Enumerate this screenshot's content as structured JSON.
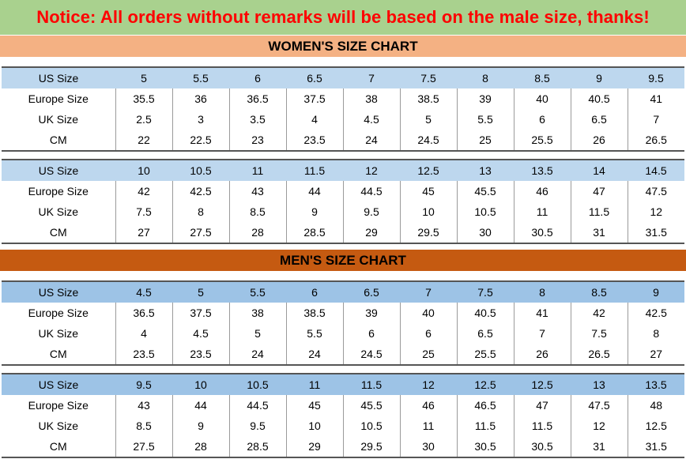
{
  "notice": "Notice: All orders without remarks will be based on the male size, thanks!",
  "women_title": "WOMEN'S SIZE CHART",
  "men_title": "MEN'S SIZE CHART",
  "row_labels": [
    "US Size",
    "Europe Size",
    "UK Size",
    "CM"
  ],
  "women_tables": [
    {
      "us": [
        "5",
        "5.5",
        "6",
        "6.5",
        "7",
        "7.5",
        "8",
        "8.5",
        "9",
        "9.5"
      ],
      "eu": [
        "35.5",
        "36",
        "36.5",
        "37.5",
        "38",
        "38.5",
        "39",
        "40",
        "40.5",
        "41"
      ],
      "uk": [
        "2.5",
        "3",
        "3.5",
        "4",
        "4.5",
        "5",
        "5.5",
        "6",
        "6.5",
        "7"
      ],
      "cm": [
        "22",
        "22.5",
        "23",
        "23.5",
        "24",
        "24.5",
        "25",
        "25.5",
        "26",
        "26.5"
      ]
    },
    {
      "us": [
        "10",
        "10.5",
        "11",
        "11.5",
        "12",
        "12.5",
        "13",
        "13.5",
        "14",
        "14.5"
      ],
      "eu": [
        "42",
        "42.5",
        "43",
        "44",
        "44.5",
        "45",
        "45.5",
        "46",
        "47",
        "47.5"
      ],
      "uk": [
        "7.5",
        "8",
        "8.5",
        "9",
        "9.5",
        "10",
        "10.5",
        "11",
        "11.5",
        "12"
      ],
      "cm": [
        "27",
        "27.5",
        "28",
        "28.5",
        "29",
        "29.5",
        "30",
        "30.5",
        "31",
        "31.5"
      ]
    }
  ],
  "men_tables": [
    {
      "us": [
        "4.5",
        "5",
        "5.5",
        "6",
        "6.5",
        "7",
        "7.5",
        "8",
        "8.5",
        "9"
      ],
      "eu": [
        "36.5",
        "37.5",
        "38",
        "38.5",
        "39",
        "40",
        "40.5",
        "41",
        "42",
        "42.5"
      ],
      "uk": [
        "4",
        "4.5",
        "5",
        "5.5",
        "6",
        "6",
        "6.5",
        "7",
        "7.5",
        "8"
      ],
      "cm": [
        "23.5",
        "23.5",
        "24",
        "24",
        "24.5",
        "25",
        "25.5",
        "26",
        "26.5",
        "27"
      ]
    },
    {
      "us": [
        "9.5",
        "10",
        "10.5",
        "11",
        "11.5",
        "12",
        "12.5",
        "12.5",
        "13",
        "13.5"
      ],
      "eu": [
        "43",
        "44",
        "44.5",
        "45",
        "45.5",
        "46",
        "46.5",
        "47",
        "47.5",
        "48"
      ],
      "uk": [
        "8.5",
        "9",
        "9.5",
        "10",
        "10.5",
        "11",
        "11.5",
        "11.5",
        "12",
        "12.5"
      ],
      "cm": [
        "27.5",
        "28",
        "28.5",
        "29",
        "29.5",
        "30",
        "30.5",
        "30.5",
        "31",
        "31.5"
      ]
    }
  ]
}
